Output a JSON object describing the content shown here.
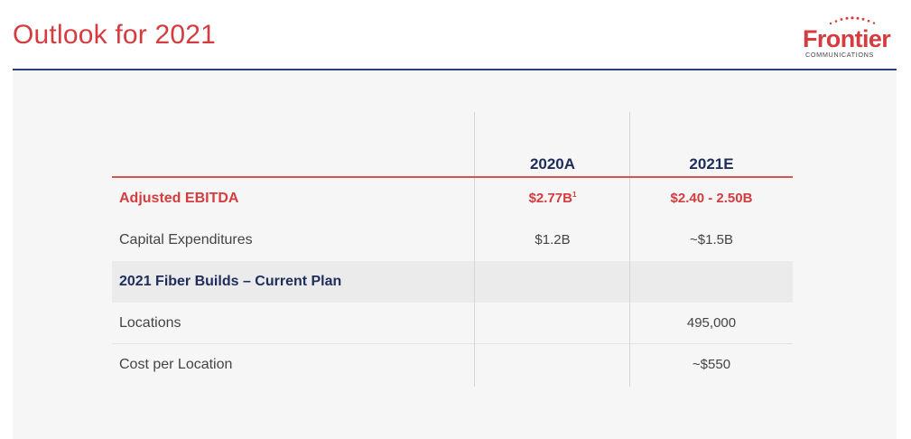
{
  "slide": {
    "title": "Outlook for 2021"
  },
  "logo": {
    "name": "Frontier",
    "subtitle": "COMMUNICATIONS"
  },
  "colors": {
    "accent_red": "#d43c3f",
    "navy": "#1f2d5c",
    "panel_bg": "#f6f6f6",
    "shaded_row": "#ebebeb"
  },
  "table": {
    "columns": [
      "2020A",
      "2021E"
    ],
    "rows": [
      {
        "label": "Adjusted EBITDA",
        "val_2020": "$2.77B",
        "val_2020_sup": "1",
        "val_2021": "$2.40 - 2.50B",
        "style": "highlight"
      },
      {
        "label": "Capital Expenditures",
        "val_2020": "$1.2B",
        "val_2021": "~$1.5B",
        "style": "normal"
      },
      {
        "label": "2021 Fiber Builds – Current Plan",
        "val_2020": "",
        "val_2021": "",
        "style": "section"
      },
      {
        "label": "Locations",
        "val_2020": "",
        "val_2021": "495,000",
        "style": "normal"
      },
      {
        "label": "Cost per Location",
        "val_2020": "",
        "val_2021": "~$550",
        "style": "normal"
      }
    ]
  }
}
